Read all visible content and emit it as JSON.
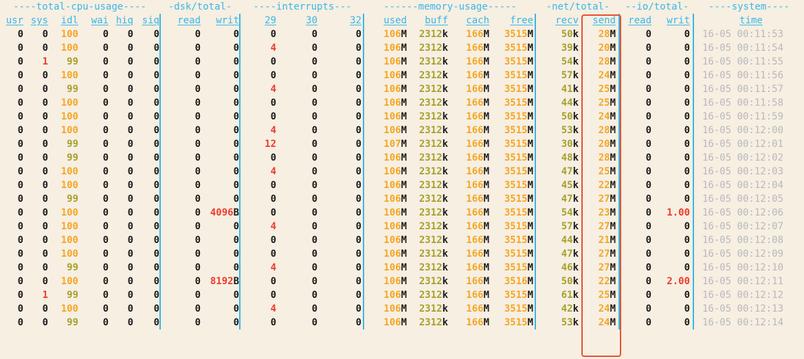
{
  "header_groups": [
    {
      "key": "cpu",
      "label": "----total-cpu-usage----"
    },
    {
      "key": "dsk",
      "label": "-dsk/total-"
    },
    {
      "key": "int",
      "label": "----interrupts---"
    },
    {
      "key": "mem",
      "label": "------memory-usage-----"
    },
    {
      "key": "net",
      "label": "-net/total-"
    },
    {
      "key": "io",
      "label": "--io/total-"
    },
    {
      "key": "sys",
      "label": "----system----"
    }
  ],
  "columns": [
    {
      "key": "usr",
      "label": "usr"
    },
    {
      "key": "sys",
      "label": "sys"
    },
    {
      "key": "idl",
      "label": "idl"
    },
    {
      "key": "wai",
      "label": "wai"
    },
    {
      "key": "hiq",
      "label": "hiq"
    },
    {
      "key": "siq",
      "label": "siq"
    },
    {
      "key": "read",
      "label": "read"
    },
    {
      "key": "writ",
      "label": "writ"
    },
    {
      "key": "i29",
      "label": "29"
    },
    {
      "key": "i30",
      "label": "30"
    },
    {
      "key": "i32",
      "label": "32"
    },
    {
      "key": "used",
      "label": "used"
    },
    {
      "key": "buff",
      "label": "buff"
    },
    {
      "key": "cach",
      "label": "cach"
    },
    {
      "key": "free",
      "label": "free"
    },
    {
      "key": "recv",
      "label": "recv"
    },
    {
      "key": "send",
      "label": "send"
    },
    {
      "key": "ioread",
      "label": "read"
    },
    {
      "key": "iowrit",
      "label": "writ"
    },
    {
      "key": "time",
      "label": "time"
    }
  ],
  "rows": [
    [
      "0",
      "0",
      "100",
      "0",
      "0",
      "0",
      "0",
      "0",
      "0",
      "0",
      "0",
      "106M",
      "2312k",
      "166M",
      "3515M",
      "50k",
      "28M",
      "0",
      "0",
      "16-05 00:11:53"
    ],
    [
      "0",
      "0",
      "100",
      "0",
      "0",
      "0",
      "0",
      "0",
      "4",
      "0",
      "0",
      "106M",
      "2312k",
      "166M",
      "3515M",
      "39k",
      "20M",
      "0",
      "0",
      "16-05 00:11:54"
    ],
    [
      "0",
      "1",
      "99",
      "0",
      "0",
      "0",
      "0",
      "0",
      "0",
      "0",
      "0",
      "106M",
      "2312k",
      "166M",
      "3515M",
      "54k",
      "28M",
      "0",
      "0",
      "16-05 00:11:55"
    ],
    [
      "0",
      "0",
      "100",
      "0",
      "0",
      "0",
      "0",
      "0",
      "0",
      "0",
      "0",
      "106M",
      "2312k",
      "166M",
      "3515M",
      "57k",
      "24M",
      "0",
      "0",
      "16-05 00:11:56"
    ],
    [
      "0",
      "0",
      "99",
      "0",
      "0",
      "0",
      "0",
      "0",
      "4",
      "0",
      "0",
      "106M",
      "2312k",
      "166M",
      "3515M",
      "41k",
      "25M",
      "0",
      "0",
      "16-05 00:11:57"
    ],
    [
      "0",
      "0",
      "100",
      "0",
      "0",
      "0",
      "0",
      "0",
      "0",
      "0",
      "0",
      "106M",
      "2312k",
      "166M",
      "3515M",
      "44k",
      "25M",
      "0",
      "0",
      "16-05 00:11:58"
    ],
    [
      "0",
      "0",
      "100",
      "0",
      "0",
      "0",
      "0",
      "0",
      "0",
      "0",
      "0",
      "106M",
      "2312k",
      "166M",
      "3515M",
      "50k",
      "24M",
      "0",
      "0",
      "16-05 00:11:59"
    ],
    [
      "0",
      "0",
      "100",
      "0",
      "0",
      "0",
      "0",
      "0",
      "4",
      "0",
      "0",
      "106M",
      "2312k",
      "166M",
      "3515M",
      "53k",
      "28M",
      "0",
      "0",
      "16-05 00:12:00"
    ],
    [
      "0",
      "0",
      "99",
      "0",
      "0",
      "0",
      "0",
      "0",
      "12",
      "0",
      "0",
      "107M",
      "2312k",
      "166M",
      "3515M",
      "30k",
      "20M",
      "0",
      "0",
      "16-05 00:12:01"
    ],
    [
      "0",
      "0",
      "99",
      "0",
      "0",
      "0",
      "0",
      "0",
      "0",
      "0",
      "0",
      "106M",
      "2312k",
      "166M",
      "3515M",
      "48k",
      "28M",
      "0",
      "0",
      "16-05 00:12:02"
    ],
    [
      "0",
      "0",
      "100",
      "0",
      "0",
      "0",
      "0",
      "0",
      "4",
      "0",
      "0",
      "106M",
      "2312k",
      "166M",
      "3515M",
      "47k",
      "25M",
      "0",
      "0",
      "16-05 00:12:03"
    ],
    [
      "0",
      "0",
      "100",
      "0",
      "0",
      "0",
      "0",
      "0",
      "0",
      "0",
      "0",
      "106M",
      "2312k",
      "166M",
      "3515M",
      "45k",
      "22M",
      "0",
      "0",
      "16-05 00:12:04"
    ],
    [
      "0",
      "0",
      "99",
      "0",
      "0",
      "0",
      "0",
      "0",
      "0",
      "0",
      "0",
      "106M",
      "2312k",
      "166M",
      "3515M",
      "47k",
      "27M",
      "0",
      "0",
      "16-05 00:12:05"
    ],
    [
      "0",
      "0",
      "100",
      "0",
      "0",
      "0",
      "0",
      "4096B",
      "0",
      "0",
      "0",
      "106M",
      "2312k",
      "166M",
      "3515M",
      "54k",
      "23M",
      "0",
      "1.00",
      "16-05 00:12:06"
    ],
    [
      "0",
      "0",
      "100",
      "0",
      "0",
      "0",
      "0",
      "0",
      "4",
      "0",
      "0",
      "106M",
      "2312k",
      "166M",
      "3515M",
      "57k",
      "27M",
      "0",
      "0",
      "16-05 00:12:07"
    ],
    [
      "0",
      "0",
      "100",
      "0",
      "0",
      "0",
      "0",
      "0",
      "0",
      "0",
      "0",
      "106M",
      "2312k",
      "166M",
      "3515M",
      "44k",
      "21M",
      "0",
      "0",
      "16-05 00:12:08"
    ],
    [
      "0",
      "0",
      "100",
      "0",
      "0",
      "0",
      "0",
      "0",
      "0",
      "0",
      "0",
      "106M",
      "2312k",
      "166M",
      "3515M",
      "47k",
      "27M",
      "0",
      "0",
      "16-05 00:12:09"
    ],
    [
      "0",
      "0",
      "99",
      "0",
      "0",
      "0",
      "0",
      "0",
      "4",
      "0",
      "0",
      "106M",
      "2312k",
      "166M",
      "3515M",
      "46k",
      "27M",
      "0",
      "0",
      "16-05 00:12:10"
    ],
    [
      "0",
      "0",
      "100",
      "0",
      "0",
      "0",
      "0",
      "8192B",
      "0",
      "0",
      "0",
      "106M",
      "2312k",
      "166M",
      "3516M",
      "50k",
      "22M",
      "0",
      "2.00",
      "16-05 00:12:11"
    ],
    [
      "0",
      "1",
      "99",
      "0",
      "0",
      "0",
      "0",
      "0",
      "0",
      "0",
      "0",
      "106M",
      "2312k",
      "166M",
      "3515M",
      "61k",
      "25M",
      "0",
      "0",
      "16-05 00:12:12"
    ],
    [
      "0",
      "0",
      "100",
      "0",
      "0",
      "0",
      "0",
      "0",
      "4",
      "0",
      "0",
      "106M",
      "2312k",
      "166M",
      "3515M",
      "42k",
      "24M",
      "0",
      "0",
      "16-05 00:12:13"
    ],
    [
      "0",
      "0",
      "99",
      "0",
      "0",
      "0",
      "0",
      "0",
      "0",
      "0",
      "0",
      "106M",
      "2312k",
      "166M",
      "3515M",
      "53k",
      "24M",
      "0",
      "0",
      "16-05 00:12:14"
    ]
  ],
  "colors": {
    "background": "#f6efe2",
    "header": "#3bb6e8",
    "default": "#1d1d1d",
    "red": "#ef3a2c",
    "orange": "#f5a623",
    "olive": "#a8a02a",
    "time": "#b8b8bc",
    "highlight_border": "#e8502f"
  },
  "highlight": {
    "column": "send"
  }
}
